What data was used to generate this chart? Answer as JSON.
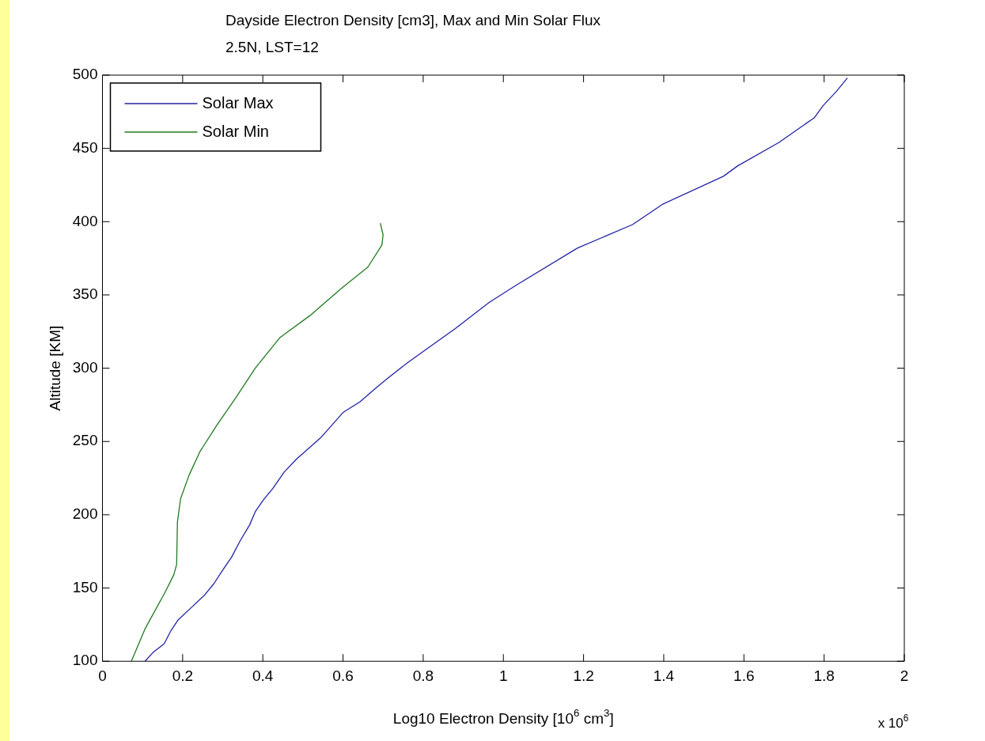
{
  "chart_data": {
    "type": "line",
    "title": "Dayside Electron Density [cm3], Max and Min Solar Flux",
    "subtitle": "2.5N, LST=12",
    "xlabel": "Log10 Electron Density [10$^{6}$ cm$^{3}$]",
    "ylabel": "Altitude [KM]",
    "xlim": [
      0,
      2
    ],
    "xticks": [
      0,
      0.2,
      0.4,
      0.6,
      0.8,
      1,
      1.2,
      1.4,
      1.6,
      1.8,
      2
    ],
    "ylim": [
      100,
      500
    ],
    "yticks": [
      100,
      150,
      200,
      250,
      300,
      350,
      400,
      450,
      500
    ],
    "legend": "top left",
    "annotations": [
      "x 10$^{6}$"
    ],
    "series": [
      {
        "name": "Solar Max",
        "color": "#2323a6",
        "x": [
          0.106,
          0.126,
          0.154,
          0.171,
          0.188,
          0.223,
          0.254,
          0.278,
          0.302,
          0.322,
          0.343,
          0.367,
          0.381,
          0.401,
          0.425,
          0.453,
          0.484,
          0.546,
          0.601,
          0.642,
          0.68,
          0.711,
          0.762,
          0.88,
          0.965,
          1.034,
          1.185,
          1.322,
          1.398,
          1.549,
          1.584,
          1.687,
          1.776,
          1.797,
          1.831,
          1.858
        ],
        "values": [
          100,
          106,
          112,
          121,
          128,
          137,
          145,
          153,
          163,
          171,
          182,
          193,
          202,
          210,
          218,
          229,
          238,
          253,
          270,
          277,
          286,
          293,
          304,
          327,
          345,
          357,
          382,
          398,
          412,
          431,
          438,
          454,
          471,
          479,
          489,
          498
        ]
      },
      {
        "name": "Solar Min",
        "color": "#217a21",
        "x": [
          0.072,
          0.106,
          0.154,
          0.178,
          0.185,
          0.187,
          0.195,
          0.216,
          0.243,
          0.285,
          0.333,
          0.381,
          0.443,
          0.518,
          0.594,
          0.662,
          0.697,
          0.7,
          0.693
        ],
        "values": [
          100,
          122,
          146,
          159,
          166,
          195,
          211,
          227,
          243,
          261,
          280,
          300,
          321,
          336,
          354,
          369,
          384,
          391,
          399
        ]
      }
    ]
  }
}
